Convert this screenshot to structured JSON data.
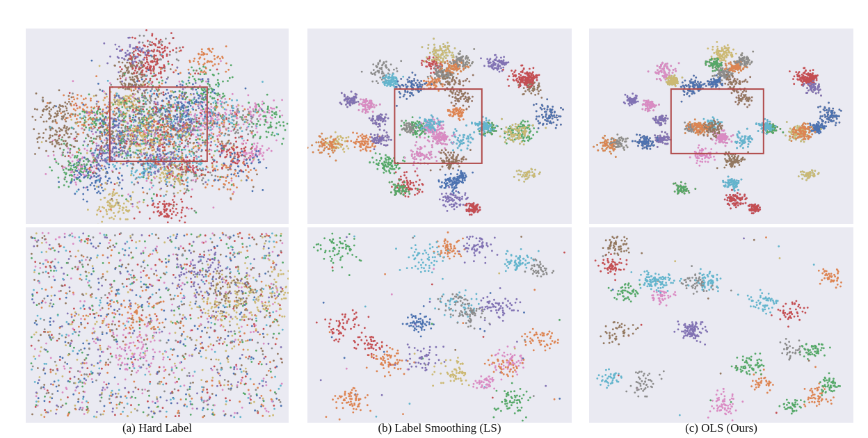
{
  "figure": {
    "captions": [
      "(a) Hard Label",
      "(b) Label Smoothing (LS)",
      "(c) OLS (Ours)"
    ]
  },
  "chart_data": {
    "type": "scatter",
    "description_kind": "t-SNE embedding scatter plots; top row full view with zoom box, bottom row zoomed region",
    "title": "",
    "xlabel": "",
    "ylabel": "",
    "grid": false,
    "legend": "none",
    "palette": [
      "#4c72b0",
      "#dd8452",
      "#55a868",
      "#c44e52",
      "#8172b3",
      "#937860",
      "#da8bc3",
      "#8c8c8c",
      "#ccb974",
      "#64b5cd"
    ],
    "highlight_box_color": "#b04a4a",
    "panels": [
      {
        "caption_index": 0,
        "method": "Hard Label",
        "zoom_box": [
          0.32,
          0.3,
          0.69,
          0.68
        ],
        "cluster_spread": "high",
        "top_clusters": 46,
        "zoom_clusters": 6,
        "zoom_scatter_points": 1800
      },
      {
        "caption_index": 1,
        "method": "Label Smoothing (LS)",
        "zoom_box": [
          0.33,
          0.31,
          0.66,
          0.69
        ],
        "cluster_spread": "medium",
        "top_clusters": 70,
        "zoom_clusters": 22,
        "zoom_scatter_points": 60
      },
      {
        "caption_index": 2,
        "method": "OLS (Ours)",
        "zoom_box": [
          0.31,
          0.31,
          0.66,
          0.64
        ],
        "cluster_spread": "low",
        "top_clusters": 72,
        "zoom_clusters": 24,
        "zoom_scatter_points": 25
      }
    ]
  }
}
